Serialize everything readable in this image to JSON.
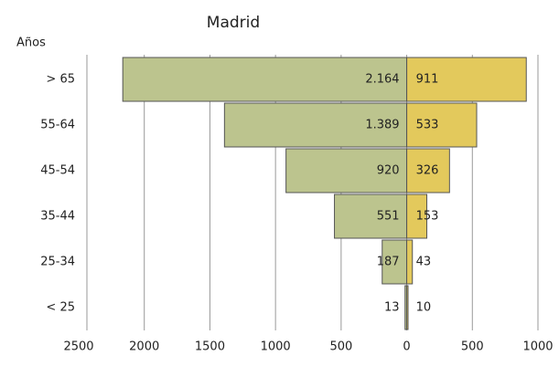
{
  "chart_data": {
    "type": "pyramid",
    "title": "Madrid",
    "ylabel": "Años",
    "categories": [
      "> 65",
      "55-64",
      "45-54",
      "35-44",
      "25-34",
      "< 25"
    ],
    "series": [
      {
        "side": "left",
        "color": "#bcc48e",
        "values": [
          2164,
          1389,
          920,
          551,
          187,
          13
        ],
        "value_labels": [
          "2.164",
          "1.389",
          "920",
          "551",
          "187",
          "13"
        ]
      },
      {
        "side": "right",
        "color": "#e3c95c",
        "values": [
          911,
          533,
          326,
          153,
          43,
          10
        ],
        "value_labels": [
          "911",
          "533",
          "326",
          "153",
          "43",
          "10"
        ]
      }
    ],
    "xlim": [
      -2500,
      1000
    ],
    "xticks": [
      {
        "value": -2500,
        "label": "2500"
      },
      {
        "value": -2000,
        "label": "2000"
      },
      {
        "value": -1500,
        "label": "1500"
      },
      {
        "value": -1000,
        "label": "1000"
      },
      {
        "value": -500,
        "label": "500"
      },
      0,
      500,
      1000
    ],
    "grid": true
  }
}
